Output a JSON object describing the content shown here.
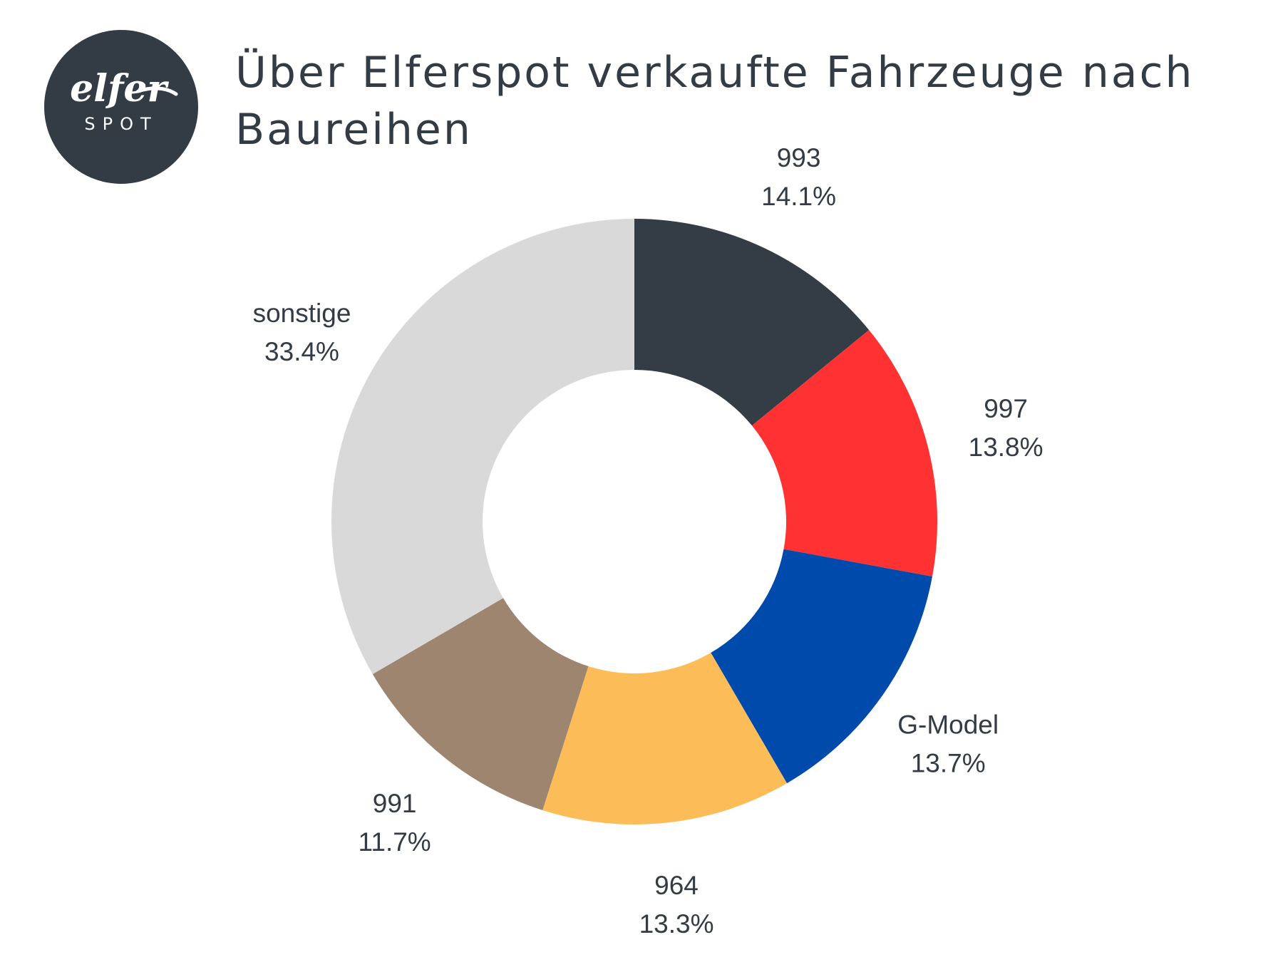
{
  "brand": {
    "logo_script": "elfer",
    "logo_sub": "SPOT"
  },
  "chart_data": {
    "type": "pie",
    "title": "Über Elferspot verkaufte Fahrzeuge nach Baureihen",
    "donut": true,
    "slices": [
      {
        "label": "993",
        "value": 14.1,
        "display": "14.1%",
        "color": "#343c46"
      },
      {
        "label": "997",
        "value": 13.8,
        "display": "13.8%",
        "color": "#fe3232"
      },
      {
        "label": "G-Model",
        "value": 13.7,
        "display": "13.7%",
        "color": "#004aab"
      },
      {
        "label": "964",
        "value": 13.3,
        "display": "13.3%",
        "color": "#fcbd58"
      },
      {
        "label": "991",
        "value": 11.7,
        "display": "11.7%",
        "color": "#9e8570"
      },
      {
        "label": "sonstige",
        "value": 33.4,
        "display": "33.4%",
        "color": "#d9d9d9"
      }
    ]
  }
}
